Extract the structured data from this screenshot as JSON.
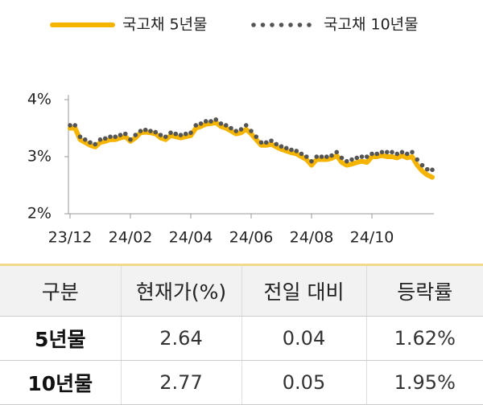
{
  "chart_data": {
    "type": "line",
    "categories": [
      "23/12",
      null,
      null,
      null,
      null,
      null,
      null,
      null,
      null,
      null,
      null,
      null,
      "24/02",
      null,
      null,
      null,
      null,
      null,
      null,
      null,
      null,
      null,
      null,
      null,
      "24/04",
      null,
      null,
      null,
      null,
      null,
      null,
      null,
      null,
      null,
      null,
      null,
      "24/06",
      null,
      null,
      null,
      null,
      null,
      null,
      null,
      null,
      null,
      null,
      null,
      "24/08",
      null,
      null,
      null,
      null,
      null,
      null,
      null,
      null,
      null,
      null,
      null,
      "24/10",
      null,
      null,
      null,
      null,
      null,
      null,
      null,
      null,
      null,
      null,
      null,
      null
    ],
    "series": [
      {
        "name": "국고채 5년물",
        "color": "#f5b400",
        "style": "line",
        "values": [
          3.5,
          3.5,
          3.3,
          3.25,
          3.2,
          3.17,
          3.25,
          3.27,
          3.3,
          3.3,
          3.33,
          3.35,
          3.27,
          3.33,
          3.42,
          3.43,
          3.42,
          3.4,
          3.33,
          3.3,
          3.37,
          3.35,
          3.33,
          3.35,
          3.37,
          3.5,
          3.53,
          3.57,
          3.58,
          3.6,
          3.53,
          3.5,
          3.45,
          3.4,
          3.42,
          3.48,
          3.4,
          3.3,
          3.2,
          3.2,
          3.22,
          3.17,
          3.13,
          3.1,
          3.07,
          3.05,
          3.0,
          2.95,
          2.85,
          2.95,
          2.95,
          2.95,
          2.97,
          3.02,
          2.9,
          2.85,
          2.87,
          2.9,
          2.92,
          2.9,
          3.0,
          3.0,
          3.02,
          3.0,
          3.0,
          2.98,
          3.02,
          2.98,
          3.0,
          2.85,
          2.75,
          2.68,
          2.64
        ]
      },
      {
        "name": "국고채 10년물",
        "color": "#555555",
        "style": "dots",
        "values": [
          3.55,
          3.55,
          3.35,
          3.3,
          3.25,
          3.22,
          3.3,
          3.32,
          3.35,
          3.35,
          3.38,
          3.4,
          3.3,
          3.38,
          3.45,
          3.47,
          3.45,
          3.43,
          3.38,
          3.35,
          3.42,
          3.4,
          3.38,
          3.4,
          3.42,
          3.55,
          3.58,
          3.62,
          3.62,
          3.65,
          3.58,
          3.55,
          3.5,
          3.45,
          3.48,
          3.55,
          3.45,
          3.35,
          3.25,
          3.25,
          3.28,
          3.22,
          3.18,
          3.15,
          3.12,
          3.1,
          3.05,
          3.0,
          2.92,
          3.0,
          3.0,
          3.0,
          3.02,
          3.08,
          2.98,
          2.92,
          2.95,
          2.98,
          3.0,
          3.0,
          3.05,
          3.05,
          3.08,
          3.08,
          3.08,
          3.05,
          3.08,
          3.05,
          3.08,
          2.95,
          2.85,
          2.78,
          2.77
        ]
      }
    ],
    "ylim": [
      2,
      4
    ],
    "yticks": [
      {
        "value": 2,
        "label": "2%"
      },
      {
        "value": 3,
        "label": "3%"
      },
      {
        "value": 4,
        "label": "4%"
      }
    ]
  },
  "table": {
    "header": [
      "구분",
      "현재가(%)",
      "전일 대비",
      "등락률"
    ],
    "rows": [
      [
        "5년물",
        "2.64",
        "0.04",
        "1.62%"
      ],
      [
        "10년물",
        "2.77",
        "0.05",
        "1.95%"
      ]
    ]
  }
}
